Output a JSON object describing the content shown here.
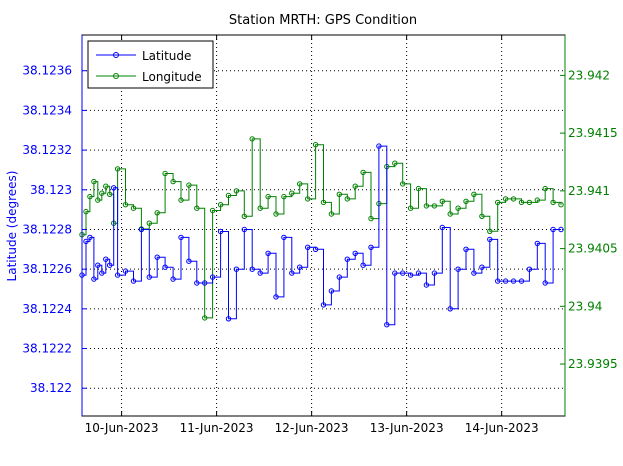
{
  "chart_data": {
    "type": "line",
    "title": "Station MRTH: GPS Condition",
    "xlabel": "",
    "ylabel": "Latitude (degrees)",
    "y2label": "",
    "grid": true,
    "legend_position": "top-left",
    "xlim": [
      "2023-06-09 14:00",
      "2023-06-14 16:00"
    ],
    "xticks": [
      "2023-06-10",
      "2023-06-11",
      "2023-06-12",
      "2023-06-13",
      "2023-06-14"
    ],
    "xtick_labels": [
      "10-Jun-2023",
      "11-Jun-2023",
      "12-Jun-2023",
      "13-Jun-2023",
      "14-Jun-2023"
    ],
    "ylim": [
      38.12186,
      38.12378
    ],
    "yticks": [
      38.122,
      38.1222,
      38.1224,
      38.1226,
      38.1228,
      38.123,
      38.1232,
      38.1234,
      38.1236
    ],
    "ytick_labels": [
      "38.122",
      "38.1222",
      "38.1224",
      "38.1226",
      "38.1228",
      "38.123",
      "38.1232",
      "38.1234",
      "38.1236"
    ],
    "y2lim": [
      23.93905,
      23.94235
    ],
    "y2ticks": [
      23.9395,
      23.94,
      23.9405,
      23.941,
      23.9415,
      23.942
    ],
    "y2tick_labels": [
      "23.9395",
      "23.94",
      "23.9405",
      "23.941",
      "23.9415",
      "23.942"
    ],
    "series": [
      {
        "name": "Latitude",
        "color": "#0000ff",
        "axis": "left",
        "x": [
          "2023-06-09 14:00",
          "2023-06-09 15:00",
          "2023-06-09 16:00",
          "2023-06-09 17:00",
          "2023-06-09 18:00",
          "2023-06-09 19:00",
          "2023-06-09 20:00",
          "2023-06-09 21:00",
          "2023-06-09 22:00",
          "2023-06-09 23:00",
          "2023-06-10 01:00",
          "2023-06-10 03:00",
          "2023-06-10 05:00",
          "2023-06-10 07:00",
          "2023-06-10 09:00",
          "2023-06-10 11:00",
          "2023-06-10 13:00",
          "2023-06-10 15:00",
          "2023-06-10 17:00",
          "2023-06-10 19:00",
          "2023-06-10 21:00",
          "2023-06-10 23:00",
          "2023-06-11 01:00",
          "2023-06-11 03:00",
          "2023-06-11 05:00",
          "2023-06-11 07:00",
          "2023-06-11 09:00",
          "2023-06-11 11:00",
          "2023-06-11 13:00",
          "2023-06-11 15:00",
          "2023-06-11 17:00",
          "2023-06-11 19:00",
          "2023-06-11 21:00",
          "2023-06-11 23:00",
          "2023-06-12 01:00",
          "2023-06-12 03:00",
          "2023-06-12 05:00",
          "2023-06-12 07:00",
          "2023-06-12 09:00",
          "2023-06-12 11:00",
          "2023-06-12 13:00",
          "2023-06-12 15:00",
          "2023-06-12 17:00",
          "2023-06-12 19:00",
          "2023-06-12 21:00",
          "2023-06-12 23:00",
          "2023-06-13 01:00",
          "2023-06-13 03:00",
          "2023-06-13 05:00",
          "2023-06-13 07:00",
          "2023-06-13 09:00",
          "2023-06-13 11:00",
          "2023-06-13 13:00",
          "2023-06-13 15:00",
          "2023-06-13 17:00",
          "2023-06-13 19:00",
          "2023-06-13 21:00",
          "2023-06-13 23:00",
          "2023-06-14 01:00",
          "2023-06-14 03:00",
          "2023-06-14 05:00",
          "2023-06-14 07:00",
          "2023-06-14 09:00",
          "2023-06-14 11:00",
          "2023-06-14 13:00",
          "2023-06-14 15:00"
        ],
        "values": [
          38.12257,
          38.12274,
          38.12276,
          38.12255,
          38.12262,
          38.12258,
          38.12265,
          38.12262,
          38.12301,
          38.12257,
          38.12259,
          38.12254,
          38.1228,
          38.12256,
          38.12266,
          38.12261,
          38.12255,
          38.12276,
          38.12264,
          38.12253,
          38.12253,
          38.12256,
          38.12279,
          38.12235,
          38.1226,
          38.1228,
          38.1226,
          38.12258,
          38.12268,
          38.12246,
          38.12276,
          38.12258,
          38.12261,
          38.12271,
          38.1227,
          38.12242,
          38.12249,
          38.12256,
          38.12265,
          38.12268,
          38.12262,
          38.12271,
          38.12322,
          38.12232,
          38.12258,
          38.12258,
          38.12257,
          38.12258,
          38.12252,
          38.12258,
          38.12281,
          38.1224,
          38.1226,
          38.1227,
          38.12258,
          38.12261,
          38.12275,
          38.12254,
          38.12254,
          38.12254,
          38.12254,
          38.1226,
          38.12273,
          38.12253,
          38.1228,
          38.1228
        ]
      },
      {
        "name": "Longitude",
        "color": "#008000",
        "axis": "right",
        "x": [
          "2023-06-09 14:00",
          "2023-06-09 15:00",
          "2023-06-09 16:00",
          "2023-06-09 17:00",
          "2023-06-09 18:00",
          "2023-06-09 19:00",
          "2023-06-09 20:00",
          "2023-06-09 21:00",
          "2023-06-09 22:00",
          "2023-06-09 23:00",
          "2023-06-10 01:00",
          "2023-06-10 03:00",
          "2023-06-10 05:00",
          "2023-06-10 07:00",
          "2023-06-10 09:00",
          "2023-06-10 11:00",
          "2023-06-10 13:00",
          "2023-06-10 15:00",
          "2023-06-10 17:00",
          "2023-06-10 19:00",
          "2023-06-10 21:00",
          "2023-06-10 23:00",
          "2023-06-11 01:00",
          "2023-06-11 03:00",
          "2023-06-11 05:00",
          "2023-06-11 07:00",
          "2023-06-11 09:00",
          "2023-06-11 11:00",
          "2023-06-11 13:00",
          "2023-06-11 15:00",
          "2023-06-11 17:00",
          "2023-06-11 19:00",
          "2023-06-11 21:00",
          "2023-06-11 23:00",
          "2023-06-12 01:00",
          "2023-06-12 03:00",
          "2023-06-12 05:00",
          "2023-06-12 07:00",
          "2023-06-12 09:00",
          "2023-06-12 11:00",
          "2023-06-12 13:00",
          "2023-06-12 15:00",
          "2023-06-12 17:00",
          "2023-06-12 19:00",
          "2023-06-12 21:00",
          "2023-06-12 23:00",
          "2023-06-13 01:00",
          "2023-06-13 03:00",
          "2023-06-13 05:00",
          "2023-06-13 07:00",
          "2023-06-13 09:00",
          "2023-06-13 11:00",
          "2023-06-13 13:00",
          "2023-06-13 15:00",
          "2023-06-13 17:00",
          "2023-06-13 19:00",
          "2023-06-13 21:00",
          "2023-06-13 23:00",
          "2023-06-14 01:00",
          "2023-06-14 03:00",
          "2023-06-14 05:00",
          "2023-06-14 07:00",
          "2023-06-14 09:00",
          "2023-06-14 11:00",
          "2023-06-14 13:00",
          "2023-06-14 15:00"
        ],
        "values": [
          23.94062,
          23.94082,
          23.94095,
          23.94108,
          23.94092,
          23.94098,
          23.94104,
          23.94097,
          23.94072,
          23.94119,
          23.94088,
          23.94085,
          23.94067,
          23.94072,
          23.94081,
          23.94115,
          23.94108,
          23.94092,
          23.94105,
          23.94085,
          23.9399,
          23.94083,
          23.94088,
          23.94096,
          23.941,
          23.94078,
          23.94145,
          23.94085,
          23.94095,
          23.9408,
          23.94095,
          23.94098,
          23.94106,
          23.94093,
          23.9414,
          23.9409,
          23.9408,
          23.94097,
          23.94093,
          23.94104,
          23.94116,
          23.94076,
          23.94089,
          23.94121,
          23.94124,
          23.94106,
          23.94085,
          23.94102,
          23.94087,
          23.94087,
          23.94091,
          23.9408,
          23.94085,
          23.94091,
          23.94097,
          23.94078,
          23.94065,
          23.9409,
          23.94093,
          23.94093,
          23.9409,
          23.9409,
          23.94092,
          23.94102,
          23.9409,
          23.94088
        ]
      }
    ]
  }
}
